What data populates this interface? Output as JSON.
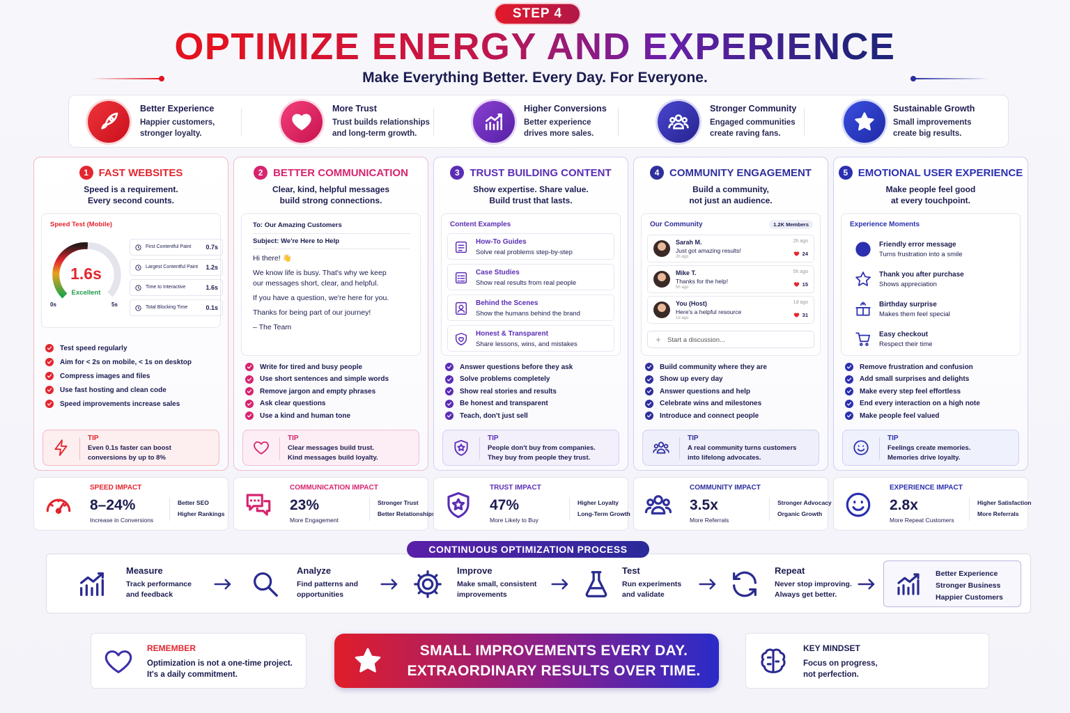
{
  "header": {
    "step": "STEP 4",
    "title": "OPTIMIZE ENERGY AND EXPERIENCE",
    "subtitle": "Make Everything Better. Every Day. For Everyone."
  },
  "benefits": [
    {
      "title": "Better Experience",
      "text": [
        "Happier customers,",
        "stronger loyalty."
      ]
    },
    {
      "title": "More Trust",
      "text": [
        "Trust builds relationships",
        "and long-term growth."
      ]
    },
    {
      "title": "Higher Conversions",
      "text": [
        "Better experience",
        "drives more sales."
      ]
    },
    {
      "title": "Stronger Community",
      "text": [
        "Engaged communities",
        "create raving fans."
      ]
    },
    {
      "title": "Sustainable Growth",
      "text": [
        "Small improvements",
        "create big results."
      ]
    }
  ],
  "columns": [
    {
      "number": "1",
      "title": "FAST WEBSITES",
      "subtitle": [
        "Speed is a requirement.",
        "Every second counts."
      ],
      "panel": {
        "title": "Speed Test (Mobile)",
        "score": "1.6s",
        "rating": "Excellent",
        "scale_min": "0s",
        "scale_max": "5s",
        "metrics": [
          {
            "label": "First Contentful Paint",
            "value": "0.7s"
          },
          {
            "label": "Largest Contentful Paint",
            "value": "1.2s"
          },
          {
            "label": "Time to Interactive",
            "value": "1.6s"
          },
          {
            "label": "Total Blocking Time",
            "value": "0.1s"
          }
        ]
      },
      "checklist": [
        "Test speed regularly",
        "Aim for < 2s on mobile, < 1s on desktop",
        "Compress images and files",
        "Use fast hosting and clean code",
        "Speed improvements increase sales"
      ],
      "tip": {
        "label": "TIP",
        "text": [
          "Even 0.1s faster can boost",
          "conversions by up to 8%"
        ]
      },
      "impact": {
        "label": "SPEED IMPACT",
        "value": "8–24%",
        "caption": "Increase in Conversions",
        "extras": [
          "Better SEO",
          "Higher Rankings"
        ]
      }
    },
    {
      "number": "2",
      "title": "BETTER COMMUNICATION",
      "subtitle": [
        "Clear, kind, helpful messages",
        "build strong connections."
      ],
      "panel": {
        "to": "To: Our Amazing Customers",
        "subject": "Subject: We're Here to Help",
        "body": [
          "Hi there! 👋",
          "We know life is busy. That's why we keep our messages short, clear, and helpful.",
          "If you have a question, we're here for you.",
          "Thanks for being part of our journey!",
          "– The Team"
        ]
      },
      "checklist": [
        "Write for tired and busy people",
        "Use short sentences and simple words",
        "Remove jargon and empty phrases",
        "Ask clear questions",
        "Use a kind and human tone"
      ],
      "tip": {
        "label": "TIP",
        "text": [
          "Clear messages build trust.",
          "Kind messages build loyalty."
        ]
      },
      "impact": {
        "label": "COMMUNICATION IMPACT",
        "value": "23%",
        "caption": "More Engagement",
        "extras": [
          "Stronger Trust",
          "Better Relationships"
        ]
      }
    },
    {
      "number": "3",
      "title": "TRUST BUILDING CONTENT",
      "subtitle": [
        "Show expertise. Share value.",
        "Build trust that lasts."
      ],
      "panel": {
        "title": "Content Examples",
        "items": [
          {
            "title": "How-To Guides",
            "text": "Solve real problems step-by-step"
          },
          {
            "title": "Case Studies",
            "text": "Show real results from real people"
          },
          {
            "title": "Behind the Scenes",
            "text": "Show the humans behind the brand"
          },
          {
            "title": "Honest & Transparent",
            "text": "Share lessons, wins, and mistakes"
          }
        ]
      },
      "checklist": [
        "Answer questions before they ask",
        "Solve problems completely",
        "Show real stories and results",
        "Be honest and transparent",
        "Teach, don't just sell"
      ],
      "tip": {
        "label": "TIP",
        "text": [
          "People don't buy from companies.",
          "They buy from people they trust."
        ]
      },
      "impact": {
        "label": "TRUST IMPACT",
        "value": "47%",
        "caption": "More Likely to Buy",
        "extras": [
          "Higher Loyalty",
          "Long-Term Growth"
        ]
      }
    },
    {
      "number": "4",
      "title": "COMMUNITY ENGAGEMENT",
      "subtitle": [
        "Build a community,",
        "not just an audience."
      ],
      "panel": {
        "title": "Our Community",
        "members": "1.2K Members",
        "posts": [
          {
            "name": "Sarah M.",
            "text": "Just got amazing results!",
            "posted": "2h ago",
            "time": "2h ago",
            "likes": 24
          },
          {
            "name": "Mike T.",
            "text": "Thanks for the help!",
            "posted": "5h ago",
            "time": "5h ago",
            "likes": 15
          },
          {
            "name": "You (Host)",
            "text": "Here's a helpful resource",
            "posted": "1d ago",
            "time": "1d ago",
            "likes": 31
          }
        ],
        "input": "Start a discussion..."
      },
      "checklist": [
        "Build community where they are",
        "Show up every day",
        "Answer questions and help",
        "Celebrate wins and milestones",
        "Introduce and connect people"
      ],
      "tip": {
        "label": "TIP",
        "text": [
          "A real community turns customers",
          "into lifelong advocates."
        ]
      },
      "impact": {
        "label": "COMMUNITY IMPACT",
        "value": "3.5x",
        "caption": "More Referrals",
        "extras": [
          "Stronger Advocacy",
          "Organic Growth"
        ]
      }
    },
    {
      "number": "5",
      "title": "EMOTIONAL USER EXPERIENCE",
      "subtitle": [
        "Make people feel good",
        "at every touchpoint."
      ],
      "panel": {
        "title": "Experience Moments",
        "items": [
          {
            "title": "Friendly error message",
            "text": "Turns frustration into a smile"
          },
          {
            "title": "Thank you after purchase",
            "text": "Shows appreciation"
          },
          {
            "title": "Birthday surprise",
            "text": "Makes them feel special"
          },
          {
            "title": "Easy checkout",
            "text": "Respect their time"
          }
        ]
      },
      "checklist": [
        "Remove frustration and confusion",
        "Add small surprises and delights",
        "Make every step feel effortless",
        "End every interaction on a high note",
        "Make people feel valued"
      ],
      "tip": {
        "label": "TIP",
        "text": [
          "Feelings create memories.",
          "Memories drive loyalty."
        ]
      },
      "impact": {
        "label": "EXPERIENCE IMPACT",
        "value": "2.8x",
        "caption": "More Repeat Customers",
        "extras": [
          "Higher Satisfaction",
          "More Referrals"
        ]
      }
    }
  ],
  "process": {
    "title": "CONTINUOUS OPTIMIZATION PROCESS",
    "steps": [
      {
        "title": "Measure",
        "text": [
          "Track performance",
          "and feedback"
        ]
      },
      {
        "title": "Analyze",
        "text": [
          "Find patterns and",
          "opportunities"
        ]
      },
      {
        "title": "Improve",
        "text": [
          "Make small, consistent",
          "improvements"
        ]
      },
      {
        "title": "Test",
        "text": [
          "Run experiments",
          "and validate"
        ]
      },
      {
        "title": "Repeat",
        "text": [
          "Never stop improving.",
          "Always get better."
        ]
      }
    ],
    "result": [
      "Better Experience",
      "Stronger Business",
      "Happier Customers"
    ]
  },
  "footer": {
    "remember": {
      "label": "REMEMBER",
      "text": [
        "Optimization is not a one-time project.",
        "It's a daily commitment."
      ]
    },
    "banner": [
      "SMALL IMPROVEMENTS EVERY DAY.",
      "EXTRAORDINARY RESULTS OVER TIME."
    ],
    "mindset": {
      "label": "KEY MINDSET",
      "text": [
        "Focus on progress,",
        "not perfection."
      ]
    }
  }
}
